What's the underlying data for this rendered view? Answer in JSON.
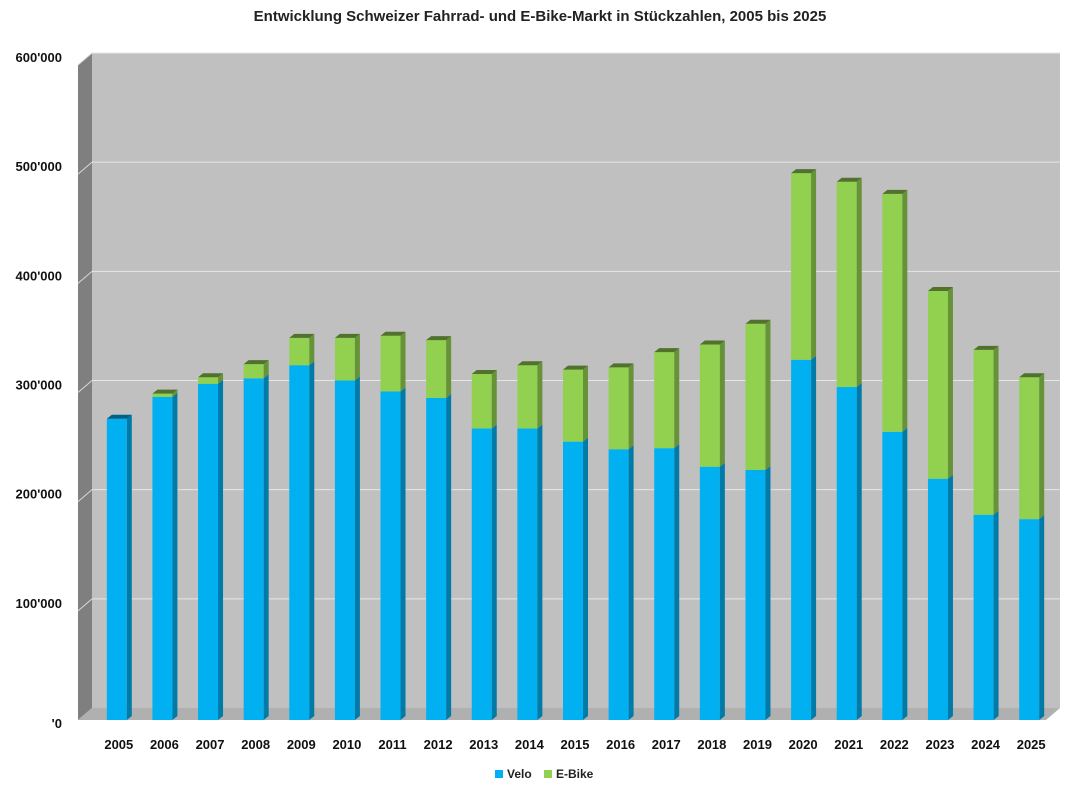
{
  "chart_data": {
    "type": "bar",
    "stacked": true,
    "title": "Entwicklung Schweizer Fahrrad- und E-Bike-Markt in Stückzahlen, 2005 bis 2025",
    "xlabel": "",
    "ylabel": "",
    "ylim": [
      0,
      600000
    ],
    "yticks": [
      0,
      100000,
      200000,
      300000,
      400000,
      500000,
      600000
    ],
    "ytick_labels": [
      "'0",
      "100'000",
      "200'000",
      "300'000",
      "400'000",
      "500'000",
      "600'000"
    ],
    "grid": true,
    "legend_position": "bottom",
    "categories": [
      "2005",
      "2006",
      "2007",
      "2008",
      "2009",
      "2010",
      "2011",
      "2012",
      "2013",
      "2014",
      "2015",
      "2016",
      "2017",
      "2018",
      "2019",
      "2020",
      "2021",
      "2022",
      "2023",
      "2024",
      "2025"
    ],
    "series": [
      {
        "name": "Velo",
        "color": "#00b0f0",
        "values": [
          276000,
          296000,
          308000,
          313000,
          325000,
          311000,
          301000,
          295000,
          267000,
          267000,
          255000,
          248000,
          249000,
          232000,
          229000,
          330000,
          305000,
          264000,
          221000,
          188000,
          184000
        ]
      },
      {
        "name": "E-Bike",
        "color": "#92d050",
        "values": [
          0,
          3000,
          6000,
          13000,
          25000,
          39000,
          51000,
          53000,
          50000,
          58000,
          66000,
          75000,
          88000,
          112000,
          134000,
          171000,
          188000,
          218000,
          172000,
          151000,
          130000
        ]
      }
    ]
  }
}
